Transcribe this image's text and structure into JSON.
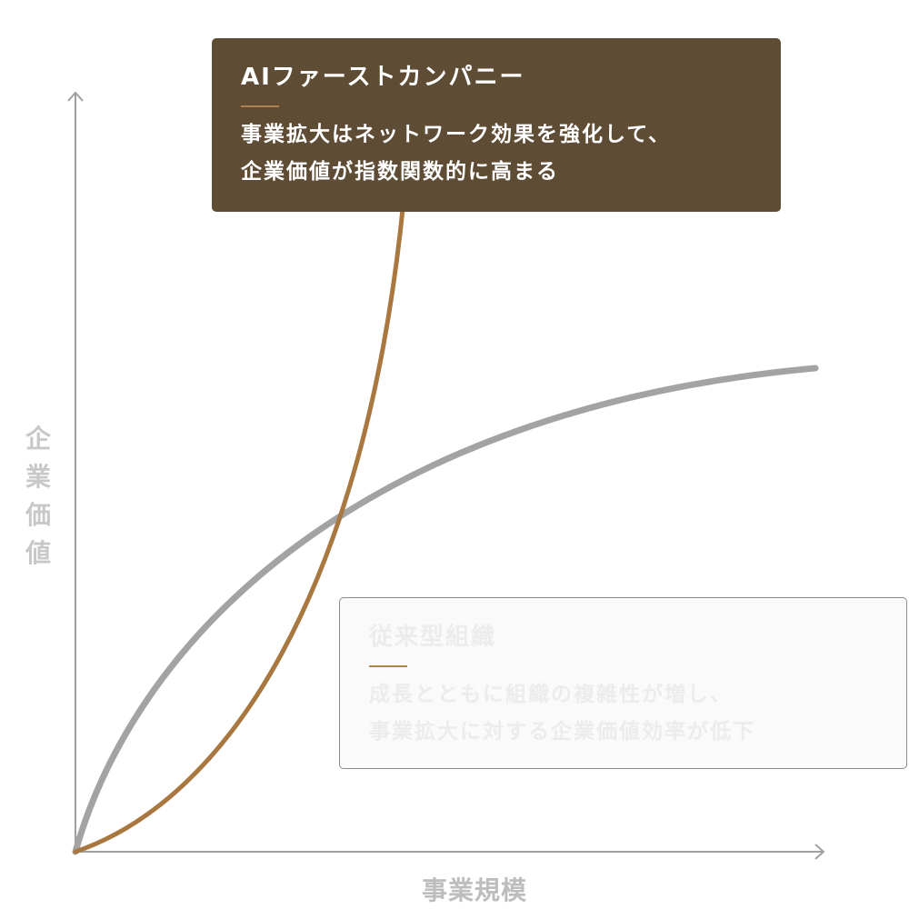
{
  "axes": {
    "y_label": "企業価値",
    "x_label": "事業規模"
  },
  "ai_card": {
    "title": "AIファーストカンパニー",
    "lines": [
      "事業拡大はネットワーク効果を強化して、",
      "企業価値が指数関数的に高まる"
    ]
  },
  "traditional_card": {
    "title": "従来型組織",
    "lines": [
      "成長とともに組織の複雑性が増し、",
      "事業拡大に対する企業価値効率が低下"
    ]
  }
}
